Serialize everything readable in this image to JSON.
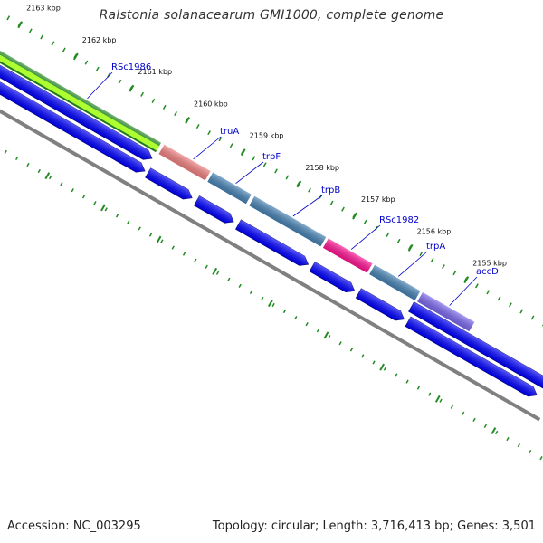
{
  "title": "Ralstonia solanacearum GMI1000, complete genome",
  "footer": {
    "accession": "Accession: NC_003295",
    "summary": "Topology: circular; Length: 3,716,413 bp; Genes: 3,501"
  },
  "map": {
    "tick_labels": [
      "2163 kbp",
      "2162 kbp",
      "2161 kbp",
      "2160 kbp",
      "2159 kbp",
      "2158 kbp",
      "2157 kbp",
      "2156 kbp",
      "2155 kbp"
    ],
    "genes": [
      {
        "name": "RSc1986",
        "color": "#228b22"
      },
      {
        "name": "truA",
        "color": "#f08080"
      },
      {
        "name": "trpF",
        "color": "#4682b4"
      },
      {
        "name": "trpB",
        "color": "#4682b4"
      },
      {
        "name": "RSc1982",
        "color": "#ff1493"
      },
      {
        "name": "trpA",
        "color": "#4682b4"
      },
      {
        "name": "accD",
        "color": "#7b68ee"
      }
    ],
    "colors": {
      "cds": "#0000ff",
      "backbone": "#808080",
      "tick": "#228b22",
      "label": "#0000cc"
    }
  }
}
